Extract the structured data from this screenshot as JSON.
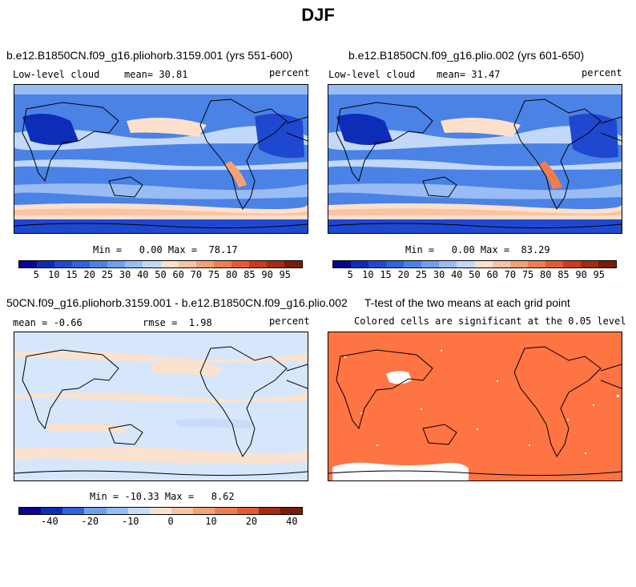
{
  "suptitle": "DJF",
  "panels": [
    {
      "title": "b.e12.B1850CN.f09_g16.pliohorb.3159.001 (yrs 551-600)",
      "left_label": "Low-level cloud",
      "mean_label": "mean= 30.81",
      "units": "percent",
      "minmax": "Min =   0.00 Max =  78.17",
      "colorbar_ticks": [
        "5",
        "10",
        "15",
        "20",
        "25",
        "30",
        "40",
        "50",
        "60",
        "70",
        "75",
        "80",
        "85",
        "90",
        "95"
      ]
    },
    {
      "title": "b.e12.B1850CN.f09_g16.plio.002 (yrs 601-650)",
      "left_label": "Low-level cloud",
      "mean_label": "mean= 31.47",
      "units": "percent",
      "minmax": "Min =   0.00 Max =  83.29",
      "colorbar_ticks": [
        "5",
        "10",
        "15",
        "20",
        "25",
        "30",
        "40",
        "50",
        "60",
        "70",
        "75",
        "80",
        "85",
        "90",
        "95"
      ]
    },
    {
      "title": "50CN.f09_g16.pliohorb.3159.001 - b.e12.B1850CN.f09_g16.plio.002",
      "left_label": "mean = -0.66",
      "mean_label": "rmse =  1.98",
      "units": "percent",
      "minmax": "Min = -10.33 Max =   8.62",
      "colorbar_ticks": [
        "-40",
        "-20",
        "-10",
        "0",
        "10",
        "20",
        "40"
      ]
    },
    {
      "title": "T-test of the two means at each grid point",
      "subtitle": "Colored cells are significant at the 0.05 level"
    }
  ],
  "colors": {
    "abs_scale": [
      "#08068f",
      "#0d2cb8",
      "#1f48d0",
      "#2f63dd",
      "#4a82e6",
      "#6f9fee",
      "#98bcf3",
      "#c2d8f8",
      "#fde0cc",
      "#f9c4a2",
      "#f5a176",
      "#ef7d4f",
      "#e75a2f",
      "#cd3b1a",
      "#a52a12",
      "#7a1a0a"
    ],
    "diff_scale": [
      "#08068f",
      "#0d2cb8",
      "#2f63dd",
      "#6f9fee",
      "#98bcf3",
      "#c8dcf8",
      "#fbe2cf",
      "#f9c4a2",
      "#f5a176",
      "#ef7d4f",
      "#e75a2f",
      "#a52a12",
      "#7a1a0a"
    ],
    "ttest_fill": "#ff7443"
  }
}
